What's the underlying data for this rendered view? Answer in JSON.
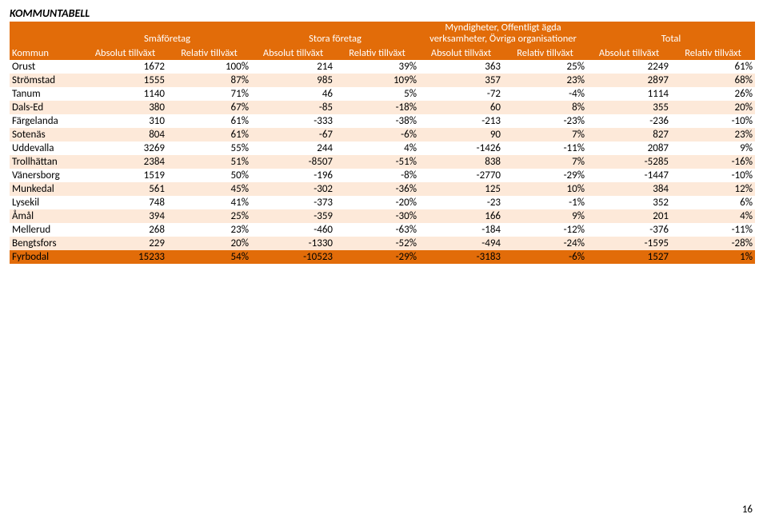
{
  "title": "KOMMUNTABELL",
  "page_number": "16",
  "colors": {
    "header_bg": "#e26c09",
    "row_even": "#fde9d9",
    "row_odd": "#ffffff",
    "total_row": "#e26c09",
    "text": "#000000"
  },
  "group_headers": [
    "",
    "Småföretag",
    "Stora företag",
    "Myndigheter, Offentligt ägda verksamheter, Övriga organisationer",
    "Total"
  ],
  "sub_headers": [
    "Kommun",
    "Absolut tillväxt",
    "Relativ tillväxt",
    "Absolut tillväxt",
    "Relativ tillväxt",
    "Absolut tillväxt",
    "Relativ tillväxt",
    "Absolut tillväxt",
    "Relativ tillväxt"
  ],
  "rows": [
    {
      "name": "Orust",
      "v": [
        "1672",
        "100%",
        "214",
        "39%",
        "363",
        "25%",
        "2249",
        "61%"
      ]
    },
    {
      "name": "Strömstad",
      "v": [
        "1555",
        "87%",
        "985",
        "109%",
        "357",
        "23%",
        "2897",
        "68%"
      ]
    },
    {
      "name": "Tanum",
      "v": [
        "1140",
        "71%",
        "46",
        "5%",
        "-72",
        "-4%",
        "1114",
        "26%"
      ]
    },
    {
      "name": "Dals-Ed",
      "v": [
        "380",
        "67%",
        "-85",
        "-18%",
        "60",
        "8%",
        "355",
        "20%"
      ]
    },
    {
      "name": "Färgelanda",
      "v": [
        "310",
        "61%",
        "-333",
        "-38%",
        "-213",
        "-23%",
        "-236",
        "-10%"
      ]
    },
    {
      "name": "Sotenäs",
      "v": [
        "804",
        "61%",
        "-67",
        "-6%",
        "90",
        "7%",
        "827",
        "23%"
      ]
    },
    {
      "name": "Uddevalla",
      "v": [
        "3269",
        "55%",
        "244",
        "4%",
        "-1426",
        "-11%",
        "2087",
        "9%"
      ]
    },
    {
      "name": "Trollhättan",
      "v": [
        "2384",
        "51%",
        "-8507",
        "-51%",
        "838",
        "7%",
        "-5285",
        "-16%"
      ]
    },
    {
      "name": "Vänersborg",
      "v": [
        "1519",
        "50%",
        "-196",
        "-8%",
        "-2770",
        "-29%",
        "-1447",
        "-10%"
      ]
    },
    {
      "name": "Munkedal",
      "v": [
        "561",
        "45%",
        "-302",
        "-36%",
        "125",
        "10%",
        "384",
        "12%"
      ]
    },
    {
      "name": "Lysekil",
      "v": [
        "748",
        "41%",
        "-373",
        "-20%",
        "-23",
        "-1%",
        "352",
        "6%"
      ]
    },
    {
      "name": "Åmål",
      "v": [
        "394",
        "25%",
        "-359",
        "-30%",
        "166",
        "9%",
        "201",
        "4%"
      ]
    },
    {
      "name": "Mellerud",
      "v": [
        "268",
        "23%",
        "-460",
        "-63%",
        "-184",
        "-12%",
        "-376",
        "-11%"
      ]
    },
    {
      "name": "Bengtsfors",
      "v": [
        "229",
        "20%",
        "-1330",
        "-52%",
        "-494",
        "-24%",
        "-1595",
        "-28%"
      ]
    }
  ],
  "total_row": {
    "name": "Fyrbodal",
    "v": [
      "15233",
      "54%",
      "-10523",
      "-29%",
      "-3183",
      "-6%",
      "1527",
      "1%"
    ]
  }
}
